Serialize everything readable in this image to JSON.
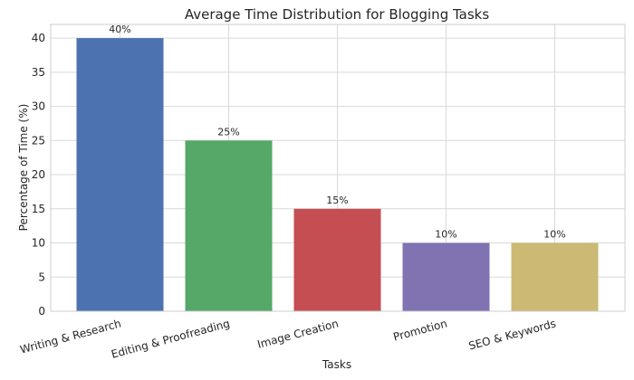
{
  "chart_data": {
    "type": "bar",
    "title": "Average Time Distribution for Blogging Tasks",
    "xlabel": "Tasks",
    "ylabel": "Percentage of Time (%)",
    "categories": [
      "Writing & Research",
      "Editing & Proofreading",
      "Image Creation",
      "Promotion",
      "SEO & Keywords"
    ],
    "values": [
      40,
      25,
      15,
      10,
      10
    ],
    "data_labels": [
      "40%",
      "25%",
      "15%",
      "10%",
      "10%"
    ],
    "colors": [
      "#4c72b0",
      "#55a868",
      "#c44e52",
      "#8172b2",
      "#ccb974"
    ],
    "ylim": [
      0,
      42
    ],
    "yticks": [
      0,
      5,
      10,
      15,
      20,
      25,
      30,
      35,
      40
    ],
    "grid": true,
    "xtick_rotation": 15
  }
}
